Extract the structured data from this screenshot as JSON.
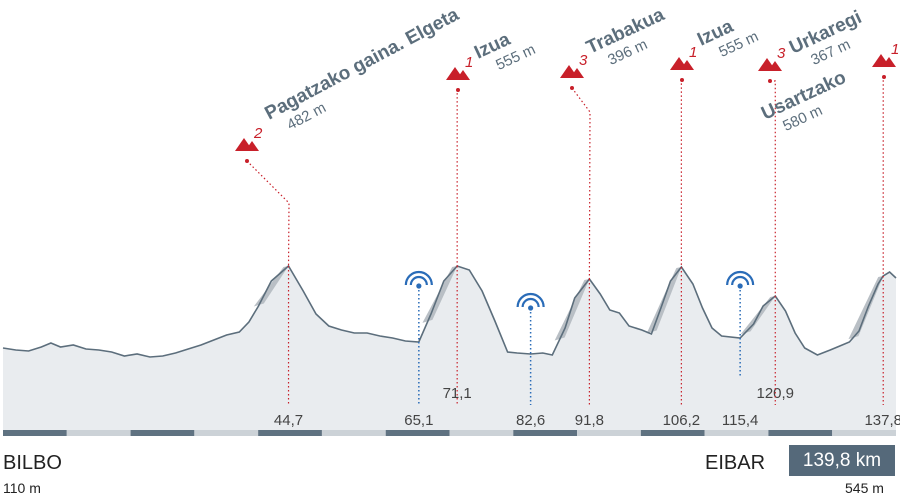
{
  "chart_data": {
    "type": "area",
    "title": "",
    "total_distance_km": 139.8,
    "xlim": [
      0,
      139.8
    ],
    "start": {
      "city": "BILBO",
      "altitude": "110 m"
    },
    "finish": {
      "city": "EIBAR",
      "altitude": "545 m"
    },
    "total_label": "139,8 km",
    "colors": {
      "profile_fill": "#e9ecef",
      "profile_line": "#5c6e7c",
      "climb_shade": "#b9bfc5",
      "accent_red": "#c8202a",
      "sprint_blue": "#2a6cb8",
      "badge": "#55697a"
    },
    "profile": [
      [
        0,
        0.18
      ],
      [
        2,
        0.16
      ],
      [
        4,
        0.15
      ],
      [
        6,
        0.19
      ],
      [
        7.5,
        0.23
      ],
      [
        9,
        0.19
      ],
      [
        11,
        0.21
      ],
      [
        13,
        0.17
      ],
      [
        15,
        0.16
      ],
      [
        17,
        0.14
      ],
      [
        19,
        0.1
      ],
      [
        21,
        0.12
      ],
      [
        23,
        0.09
      ],
      [
        25,
        0.1
      ],
      [
        27,
        0.13
      ],
      [
        29,
        0.17
      ],
      [
        31,
        0.21
      ],
      [
        33,
        0.26
      ],
      [
        35,
        0.31
      ],
      [
        37,
        0.34
      ],
      [
        38.5,
        0.44
      ],
      [
        40,
        0.6
      ],
      [
        42,
        0.85
      ],
      [
        44.7,
        1.0
      ],
      [
        47,
        0.75
      ],
      [
        49,
        0.52
      ],
      [
        51,
        0.4
      ],
      [
        53,
        0.36
      ],
      [
        55,
        0.33
      ],
      [
        57,
        0.33
      ],
      [
        59,
        0.3
      ],
      [
        61,
        0.28
      ],
      [
        63,
        0.25
      ],
      [
        65.1,
        0.24
      ],
      [
        67,
        0.52
      ],
      [
        69,
        0.85
      ],
      [
        71.1,
        1.0
      ],
      [
        73,
        0.96
      ],
      [
        75,
        0.75
      ],
      [
        77,
        0.45
      ],
      [
        79,
        0.14
      ],
      [
        80.5,
        0.13
      ],
      [
        82.6,
        0.12
      ],
      [
        84.5,
        0.13
      ],
      [
        86,
        0.11
      ],
      [
        88,
        0.38
      ],
      [
        89.5,
        0.68
      ],
      [
        91.8,
        0.87
      ],
      [
        93.5,
        0.72
      ],
      [
        95,
        0.56
      ],
      [
        96.5,
        0.53
      ],
      [
        98,
        0.4
      ],
      [
        100,
        0.36
      ],
      [
        101.5,
        0.32
      ],
      [
        103,
        0.58
      ],
      [
        104.5,
        0.85
      ],
      [
        106.2,
        0.99
      ],
      [
        108,
        0.82
      ],
      [
        109.5,
        0.58
      ],
      [
        111,
        0.38
      ],
      [
        112.5,
        0.3
      ],
      [
        115.4,
        0.28
      ],
      [
        117.5,
        0.42
      ],
      [
        119,
        0.6
      ],
      [
        120.9,
        0.7
      ],
      [
        122.5,
        0.55
      ],
      [
        124,
        0.33
      ],
      [
        125.5,
        0.18
      ],
      [
        127.5,
        0.11
      ],
      [
        129.5,
        0.16
      ],
      [
        131,
        0.2
      ],
      [
        132.5,
        0.24
      ],
      [
        134,
        0.35
      ],
      [
        135.5,
        0.6
      ],
      [
        137,
        0.82
      ],
      [
        137.8,
        0.9
      ],
      [
        138.8,
        0.94
      ],
      [
        139.8,
        0.88
      ]
    ],
    "climbs": [
      {
        "name": "Pagatzako gaina. Elgeta",
        "altitude": "482 m",
        "category": "2",
        "km": 44.7
      },
      {
        "name": "Izua",
        "altitude": "555 m",
        "category": "1",
        "km": 71.1
      },
      {
        "name": "Trabakua",
        "altitude": "396 m",
        "category": "3",
        "km": 91.8
      },
      {
        "name": "Izua",
        "altitude": "555 m",
        "category": "1",
        "km": 106.2
      },
      {
        "name": "Urkaregi",
        "altitude": "367 m",
        "category": "3",
        "km": 120.9
      },
      {
        "name": "Usartzako",
        "altitude": "580 m",
        "category": "1",
        "km": 137.8
      }
    ],
    "sprints": [
      65.1,
      82.6,
      115.4
    ],
    "km_markers": [
      {
        "km": 44.7,
        "label": "44,7"
      },
      {
        "km": 65.1,
        "label": "65,1"
      },
      {
        "km": 71.1,
        "label": "71,1"
      },
      {
        "km": 82.6,
        "label": "82,6"
      },
      {
        "km": 91.8,
        "label": "91,8"
      },
      {
        "km": 106.2,
        "label": "106,2"
      },
      {
        "km": 115.4,
        "label": "115,4"
      },
      {
        "km": 120.9,
        "label": "120,9"
      },
      {
        "km": 137.8,
        "label": "137,8"
      }
    ]
  }
}
